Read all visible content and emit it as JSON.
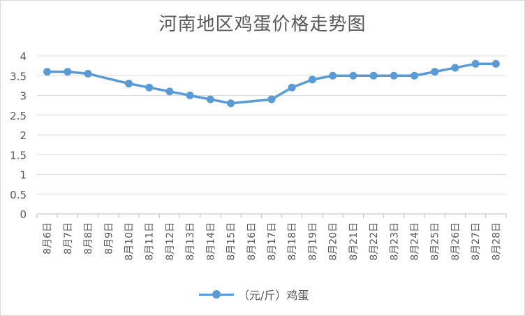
{
  "chart_data": {
    "type": "line",
    "title": "河南地区鸡蛋价格走势图",
    "categories": [
      "8月6日",
      "8月7日",
      "8月8日",
      "8月9日",
      "8月10日",
      "8月11日",
      "8月12日",
      "8月13日",
      "8月14日",
      "8月15日",
      "8月16日",
      "8月17日",
      "8月18日",
      "8月19日",
      "8月20日",
      "8月21日",
      "8月22日",
      "8月23日",
      "8月24日",
      "8月25日",
      "8月26日",
      "8月27日",
      "8月28日"
    ],
    "series": [
      {
        "name": "（元/斤）鸡蛋",
        "values": [
          3.6,
          3.6,
          3.55,
          null,
          3.3,
          3.2,
          3.1,
          3.0,
          2.9,
          2.8,
          null,
          2.9,
          3.2,
          3.4,
          3.5,
          3.5,
          3.5,
          3.5,
          3.5,
          3.6,
          3.7,
          3.8,
          3.8
        ],
        "color": "#5b9bd5"
      }
    ],
    "ylim": [
      0,
      4
    ],
    "yticks": [
      "0",
      "0.5",
      "1",
      "1.5",
      "2",
      "2.5",
      "3",
      "3.5",
      "4"
    ],
    "grid": true,
    "legend_position": "bottom",
    "xlabel": "",
    "ylabel": ""
  }
}
